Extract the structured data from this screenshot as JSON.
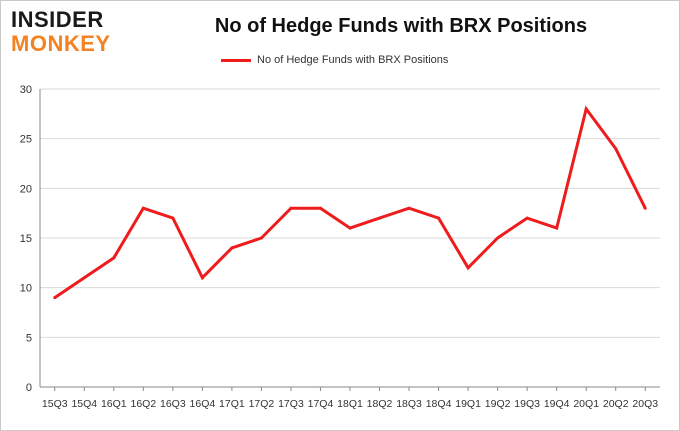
{
  "logo": {
    "top": "INSIDER",
    "bottom": "MONKEY"
  },
  "chart_data": {
    "type": "line",
    "title": "No of Hedge Funds with BRX Positions",
    "xlabel": "",
    "ylabel": "",
    "categories": [
      "15Q3",
      "15Q4",
      "16Q1",
      "16Q2",
      "16Q3",
      "16Q4",
      "17Q1",
      "17Q2",
      "17Q3",
      "17Q4",
      "18Q1",
      "18Q2",
      "18Q3",
      "18Q4",
      "19Q1",
      "19Q2",
      "19Q3",
      "19Q4",
      "20Q1",
      "20Q2",
      "20Q3"
    ],
    "series": [
      {
        "name": "No of Hedge Funds with BRX Positions",
        "color": "#ee1c1c",
        "values": [
          9,
          11,
          13,
          18,
          17,
          11,
          14,
          15,
          18,
          18,
          16,
          17,
          18,
          17,
          12,
          15,
          17,
          16,
          28,
          24,
          18
        ]
      }
    ],
    "ylim": [
      0,
      30
    ],
    "yticks": [
      0,
      5,
      10,
      15,
      20,
      25,
      30
    ],
    "grid": true,
    "legend": "top-center"
  }
}
